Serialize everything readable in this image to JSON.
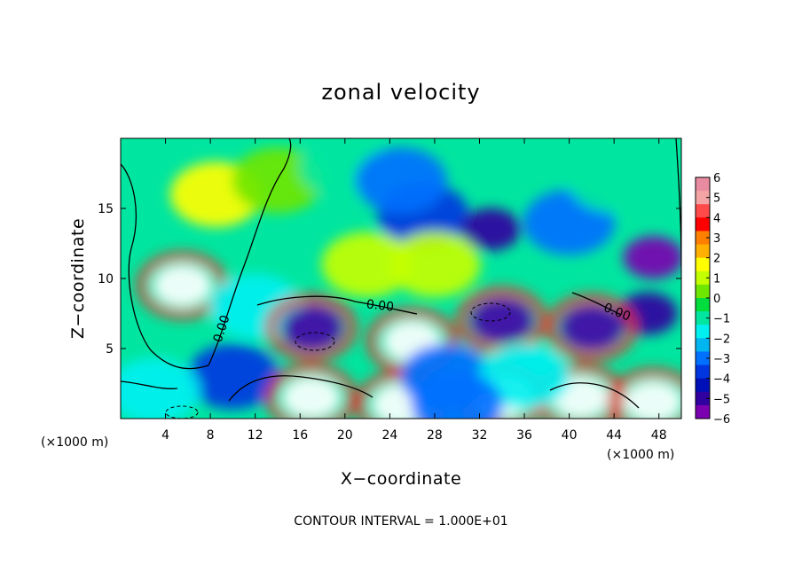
{
  "chart_data": {
    "type": "heatmap",
    "title": "zonal velocity",
    "xlabel": "X−coordinate",
    "ylabel": "Z−coordinate",
    "x_unit": "(×1000 m)",
    "y_unit": "(×1000 m)",
    "xlim": [
      0,
      50
    ],
    "ylim": [
      0,
      20
    ],
    "x_ticks": [
      4,
      8,
      12,
      16,
      20,
      24,
      28,
      32,
      36,
      40,
      44,
      48
    ],
    "y_ticks": [
      5,
      10,
      15
    ],
    "colorbar": {
      "min": -6,
      "max": 6,
      "ticks": [
        6,
        5,
        4,
        3,
        2,
        1,
        0,
        -1,
        -2,
        -3,
        -4,
        -5,
        -6
      ],
      "colors": [
        "#e98ba0",
        "#f4a4a4",
        "#ff4a4a",
        "#ff0000",
        "#ff7f00",
        "#ffb000",
        "#ffff00",
        "#c4ff00",
        "#6ee600",
        "#00dd3c",
        "#00e6a0",
        "#00f0f0",
        "#00b5f0",
        "#0070ff",
        "#0036e0",
        "#0010b8",
        "#3000a0",
        "#7a00b0"
      ]
    },
    "contour_label": "0.00",
    "footer": "CONTOUR INTERVAL = 1.000E+01",
    "features": [
      {
        "x": 5.5,
        "z": 9.5,
        "value": 6
      },
      {
        "x": 8.5,
        "z": 16,
        "value": 1.5
      },
      {
        "x": 14,
        "z": 17,
        "value": 0.5
      },
      {
        "x": 20,
        "z": 18,
        "value": -1
      },
      {
        "x": 27,
        "z": 14.5,
        "value": -4
      },
      {
        "x": 33,
        "z": 13.5,
        "value": -5
      },
      {
        "x": 25,
        "z": 17,
        "value": -3
      },
      {
        "x": 40,
        "z": 14,
        "value": -3
      },
      {
        "x": 47.5,
        "z": 11.5,
        "value": -6
      },
      {
        "x": 47,
        "z": 7.5,
        "value": -5
      },
      {
        "x": 44,
        "z": 17,
        "value": -1
      },
      {
        "x": 22,
        "z": 11,
        "value": 1
      },
      {
        "x": 28,
        "z": 11,
        "value": 1
      },
      {
        "x": 12,
        "z": 8,
        "value": -2
      },
      {
        "x": 10,
        "z": 3,
        "value": -4
      },
      {
        "x": 17,
        "z": 6.5,
        "value": 6
      },
      {
        "x": 17,
        "z": 6.5,
        "value": -5
      },
      {
        "x": 26,
        "z": 5.5,
        "value": 6
      },
      {
        "x": 34,
        "z": 7,
        "value": 6
      },
      {
        "x": 34,
        "z": 7,
        "value": -5
      },
      {
        "x": 42,
        "z": 6.5,
        "value": 6
      },
      {
        "x": 42,
        "z": 6.5,
        "value": -5
      },
      {
        "x": 17,
        "z": 1.5,
        "value": 6
      },
      {
        "x": 25,
        "z": 1,
        "value": 6
      },
      {
        "x": 34,
        "z": 1.5,
        "value": 6
      },
      {
        "x": 41,
        "z": 1.5,
        "value": 6
      },
      {
        "x": 47.5,
        "z": 1.2,
        "value": 6
      },
      {
        "x": 29,
        "z": 3,
        "value": -3
      },
      {
        "x": 36,
        "z": 3,
        "value": -2
      },
      {
        "x": 3,
        "z": 2,
        "value": -2
      },
      {
        "x": 30,
        "z": 1,
        "value": -3
      }
    ]
  }
}
